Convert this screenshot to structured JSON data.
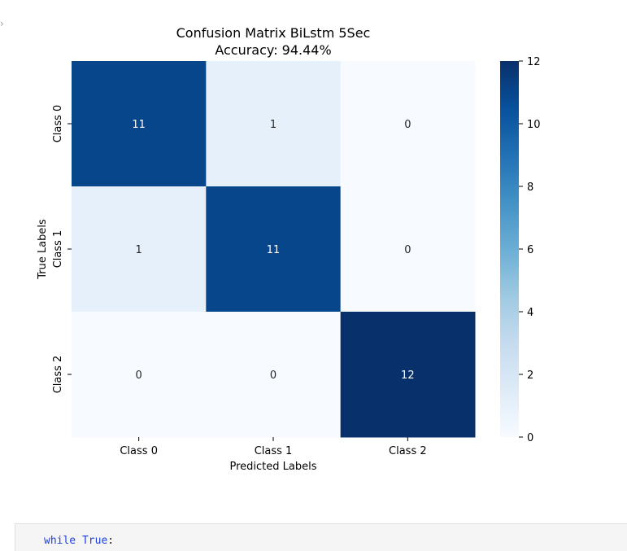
{
  "notebook": {
    "output_prompt_glyph": "›",
    "code_cell": {
      "keyword_while": "while",
      "keyword_true": "True",
      "colon": ":"
    }
  },
  "chart_data": {
    "type": "heatmap",
    "title": "Confusion Matrix BiLstm 5Sec",
    "subtitle": "Accuracy: 94.44%",
    "xlabel": "Predicted Labels",
    "ylabel": "True Labels",
    "x_categories": [
      "Class 0",
      "Class 1",
      "Class 2"
    ],
    "y_categories": [
      "Class 0",
      "Class 1",
      "Class 2"
    ],
    "values": [
      [
        11,
        1,
        0
      ],
      [
        1,
        11,
        0
      ],
      [
        0,
        0,
        12
      ]
    ],
    "colormap": "Blues",
    "colorbar": {
      "min": 0,
      "max": 12,
      "ticks": [
        0,
        2,
        4,
        6,
        8,
        10,
        12
      ]
    },
    "colors": {
      "low": "#f7fbff",
      "high": "#08306b"
    }
  }
}
